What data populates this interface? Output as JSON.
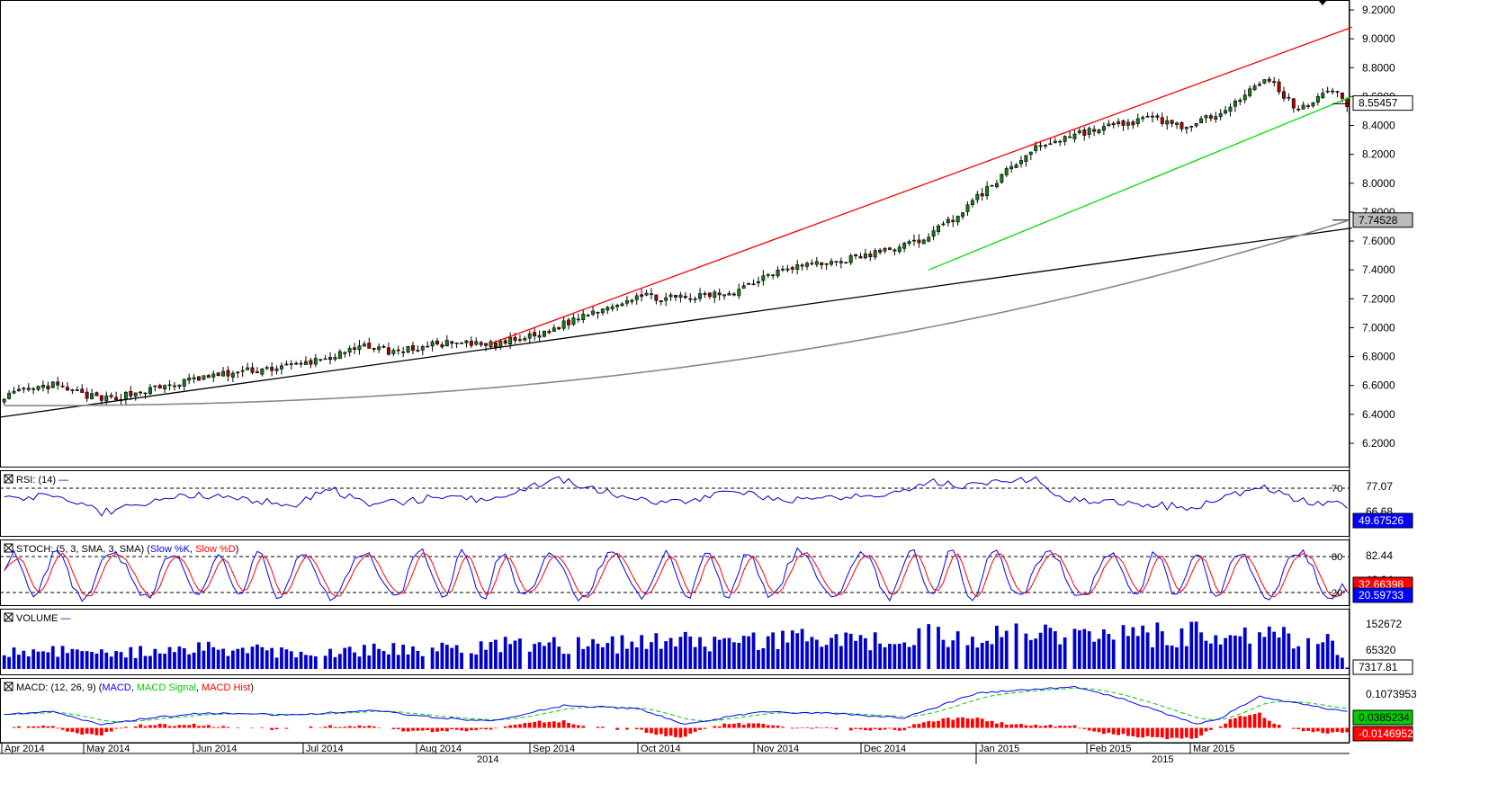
{
  "colors": {
    "bull": "#1a7a1a",
    "bear": "#b00000",
    "upper_channel": "#ff0000",
    "lower_channel": "#00dd00",
    "trendline": "#000000",
    "moving_average": "#888888",
    "rsi": "#0000cc",
    "stoch_k": "#0000ff",
    "stoch_d": "#ff0000",
    "volume": "#0000cc",
    "macd": "#0000ff",
    "macd_signal": "#00cc00",
    "macd_hist": "#ff0000",
    "badge_green": "#00cc00",
    "badge_red": "#ff0000"
  },
  "chart_data": [
    {
      "type": "candlestick",
      "panel": "price",
      "ylim": [
        6.0,
        9.3
      ],
      "yticks": [
        "9.2000",
        "9.0000",
        "8.8000",
        "8.6000",
        "8.4000",
        "8.2000",
        "8.0000",
        "7.8000",
        "7.6000",
        "7.4000",
        "7.2000",
        "7.0000",
        "6.8000",
        "6.6000",
        "6.4000",
        "6.2000"
      ],
      "last_price": "8.55457",
      "ma_label": "7.74528",
      "anchors_close": [
        [
          0,
          6.53
        ],
        [
          10,
          6.6
        ],
        [
          20,
          6.5
        ],
        [
          30,
          6.57
        ],
        [
          40,
          6.65
        ],
        [
          50,
          6.7
        ],
        [
          60,
          6.74
        ],
        [
          70,
          6.82
        ],
        [
          75,
          6.88
        ],
        [
          80,
          6.83
        ],
        [
          90,
          6.89
        ],
        [
          100,
          6.88
        ],
        [
          110,
          6.95
        ],
        [
          120,
          7.1
        ],
        [
          130,
          7.22
        ],
        [
          140,
          7.2
        ],
        [
          150,
          7.25
        ],
        [
          160,
          7.42
        ],
        [
          170,
          7.45
        ],
        [
          180,
          7.52
        ],
        [
          188,
          7.6
        ],
        [
          196,
          7.78
        ],
        [
          204,
          8.02
        ],
        [
          212,
          8.25
        ],
        [
          220,
          8.34
        ],
        [
          228,
          8.4
        ],
        [
          236,
          8.45
        ],
        [
          244,
          8.38
        ],
        [
          252,
          8.55
        ],
        [
          260,
          8.72
        ],
        [
          266,
          8.5
        ],
        [
          272,
          8.66
        ],
        [
          276,
          8.55
        ]
      ],
      "x_axis": {
        "months": [
          "Apr 2014",
          "May 2014",
          "Jun 2014",
          "Jul 2014",
          "Aug 2014",
          "Sep 2014",
          "Oct 2014",
          "Nov 2014",
          "Dec 2014",
          "Jan 2015",
          "Feb 2015",
          "Mar 2015"
        ],
        "years": [
          "2014",
          "2015"
        ]
      }
    },
    {
      "type": "line",
      "panel": "rsi",
      "title": "RSI: (14)",
      "ylim": [
        0,
        100
      ],
      "levels": [
        "70"
      ],
      "labels": [
        "77.07",
        "66.68"
      ],
      "current": "49.67526",
      "anchors": [
        [
          0,
          56
        ],
        [
          10,
          64
        ],
        [
          20,
          42
        ],
        [
          30,
          55
        ],
        [
          40,
          62
        ],
        [
          50,
          58
        ],
        [
          60,
          48
        ],
        [
          66,
          72
        ],
        [
          75,
          50
        ],
        [
          90,
          60
        ],
        [
          100,
          55
        ],
        [
          110,
          75
        ],
        [
          115,
          80
        ],
        [
          120,
          70
        ],
        [
          135,
          52
        ],
        [
          150,
          65
        ],
        [
          165,
          55
        ],
        [
          180,
          62
        ],
        [
          190,
          78
        ],
        [
          200,
          72
        ],
        [
          212,
          82
        ],
        [
          216,
          58
        ],
        [
          230,
          52
        ],
        [
          245,
          48
        ],
        [
          258,
          72
        ],
        [
          266,
          56
        ],
        [
          276,
          50
        ]
      ]
    },
    {
      "type": "line",
      "panel": "stoch",
      "title": "STOCH: (5, 3, SMA, 3, SMA)",
      "series": [
        {
          "name": "Slow %K"
        },
        {
          "name": "Slow %D"
        }
      ],
      "ylim": [
        0,
        100
      ],
      "levels": [
        "80",
        "20"
      ],
      "labels": [
        "82.44",
        "40.64"
      ],
      "k_current": "20.59733",
      "d_current": "32.66398"
    },
    {
      "type": "bar",
      "panel": "volume",
      "title": "VOLUME",
      "ylim": [
        0,
        180000
      ],
      "yticks": [
        "152672",
        "65320"
      ],
      "current": "7317.81",
      "anchors": [
        [
          0,
          70000
        ],
        [
          20,
          60000
        ],
        [
          40,
          75000
        ],
        [
          60,
          60000
        ],
        [
          80,
          70000
        ],
        [
          100,
          85000
        ],
        [
          120,
          90000
        ],
        [
          140,
          100000
        ],
        [
          160,
          110000
        ],
        [
          180,
          100000
        ],
        [
          190,
          120000
        ],
        [
          200,
          110000
        ],
        [
          210,
          140000
        ],
        [
          220,
          120000
        ],
        [
          240,
          130000
        ],
        [
          260,
          125000
        ],
        [
          272,
          115000
        ],
        [
          276,
          5000
        ]
      ]
    },
    {
      "type": "line",
      "panel": "macd",
      "title": "MACD: (12, 26, 9)",
      "series": [
        {
          "name": "MACD"
        },
        {
          "name": "MACD Signal"
        },
        {
          "name": "MACD Hist"
        }
      ],
      "ylim": [
        -0.03,
        0.125
      ],
      "labels": [
        "0.1073953"
      ],
      "macd_current": "0.0385234",
      "hist_current": "-0.0146952",
      "anchors": [
        [
          0,
          0.03
        ],
        [
          10,
          0.04
        ],
        [
          20,
          0.0
        ],
        [
          30,
          0.02
        ],
        [
          40,
          0.035
        ],
        [
          60,
          0.03
        ],
        [
          75,
          0.045
        ],
        [
          90,
          0.02
        ],
        [
          100,
          0.01
        ],
        [
          115,
          0.06
        ],
        [
          130,
          0.05
        ],
        [
          140,
          0.0
        ],
        [
          155,
          0.04
        ],
        [
          170,
          0.035
        ],
        [
          185,
          0.02
        ],
        [
          200,
          0.1
        ],
        [
          220,
          0.12
        ],
        [
          230,
          0.08
        ],
        [
          245,
          0.0
        ],
        [
          250,
          0.02
        ],
        [
          258,
          0.09
        ],
        [
          268,
          0.06
        ],
        [
          276,
          0.04
        ]
      ]
    }
  ],
  "legend": {
    "rsi_title": "RSI: (14)",
    "stoch_title": "STOCH: (5, 3, SMA, 3, SMA)",
    "stoch_k_name": "Slow %K",
    "stoch_d_name": "Slow %D",
    "volume_title": "VOLUME",
    "macd_title": "MACD: (12, 26, 9)",
    "macd_name": "MACD",
    "macd_signal_name": "MACD Signal",
    "macd_hist_name": "MACD Hist"
  }
}
